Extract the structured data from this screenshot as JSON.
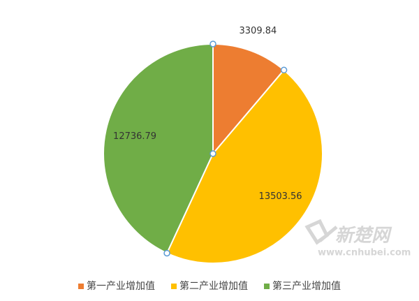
{
  "chart_data": {
    "type": "pie",
    "categories": [
      "第一产业增加值",
      "第二产业增加值",
      "第三产业增加值"
    ],
    "values": [
      3309.84,
      13503.56,
      12736.79
    ],
    "colors": [
      "#ed7d31",
      "#ffc000",
      "#70ad47"
    ],
    "legend": "bottom",
    "annotations": [
      "新楚网",
      "www.cnhubei.com"
    ]
  }
}
